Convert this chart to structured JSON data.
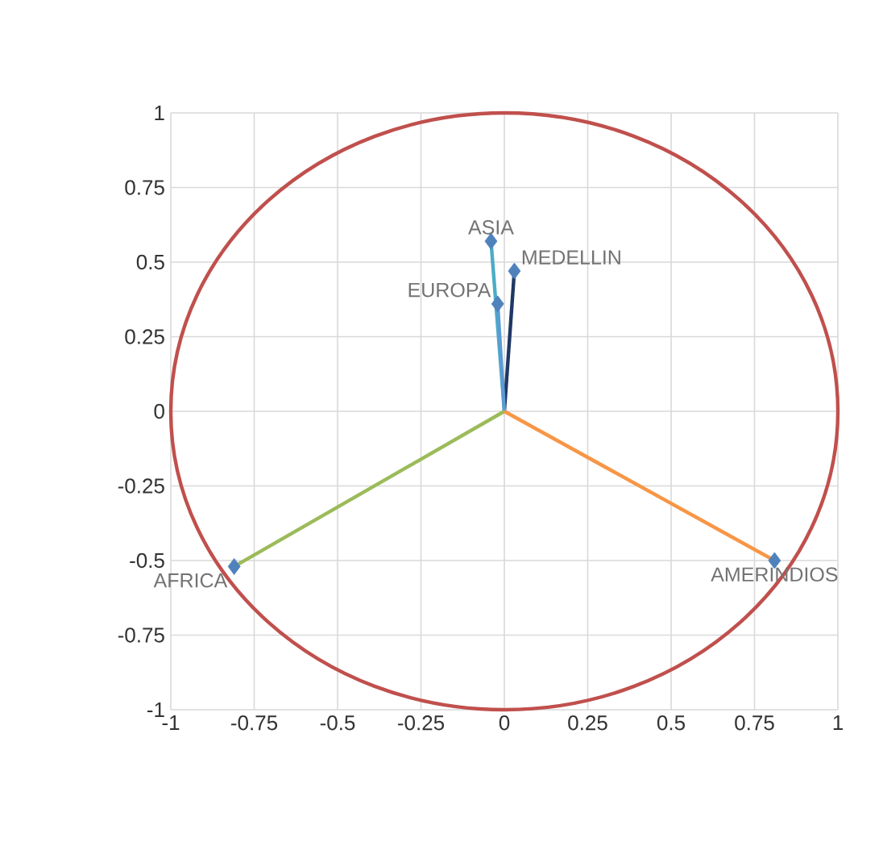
{
  "chart_data": {
    "type": "scatter",
    "series": [
      {
        "type": "line",
        "color": "#4bacc6",
        "x": [
          0,
          -0.04
        ],
        "values": [
          0,
          0.57
        ],
        "marker": "none"
      },
      {
        "type": "line",
        "color": "#1f3864",
        "x": [
          0,
          0.03
        ],
        "values": [
          0,
          0.47
        ],
        "marker": "none"
      },
      {
        "type": "line",
        "color": "#5b9bd5",
        "x": [
          0,
          -0.02
        ],
        "values": [
          0,
          0.36
        ],
        "marker": "none"
      },
      {
        "type": "line",
        "color": "#9bbb59",
        "x": [
          0,
          -0.81
        ],
        "values": [
          0,
          -0.52
        ],
        "marker": "none"
      },
      {
        "type": "line",
        "color": "#f79646",
        "x": [
          0,
          0.81
        ],
        "values": [
          0,
          -0.5
        ],
        "marker": "none"
      },
      {
        "type": "scatter",
        "color": "#4f81bd",
        "x": [
          -0.04,
          0.03,
          -0.02,
          -0.81,
          0.81
        ],
        "values": [
          0.57,
          0.47,
          0.36,
          -0.52,
          -0.5
        ],
        "marker": "diamond"
      }
    ],
    "annotations": [
      {
        "text": "ASIA",
        "x": -0.04,
        "y": 0.57
      },
      {
        "text": "MEDELLIN",
        "x": 0.03,
        "y": 0.47
      },
      {
        "text": "EUROPA",
        "x": -0.02,
        "y": 0.36
      },
      {
        "text": "AFRICA",
        "x": -0.81,
        "y": -0.52
      },
      {
        "text": "AMERINDIOS",
        "x": 0.81,
        "y": -0.5
      }
    ],
    "xlim": [
      -1,
      1
    ],
    "ylim": [
      -1,
      1
    ],
    "xticks": [
      -1,
      -0.75,
      -0.5,
      -0.25,
      0,
      0.25,
      0.5,
      0.75,
      1
    ],
    "yticks": [
      -1,
      -0.75,
      -0.5,
      -0.25,
      0,
      0.25,
      0.5,
      0.75,
      1
    ],
    "grid": true
  }
}
